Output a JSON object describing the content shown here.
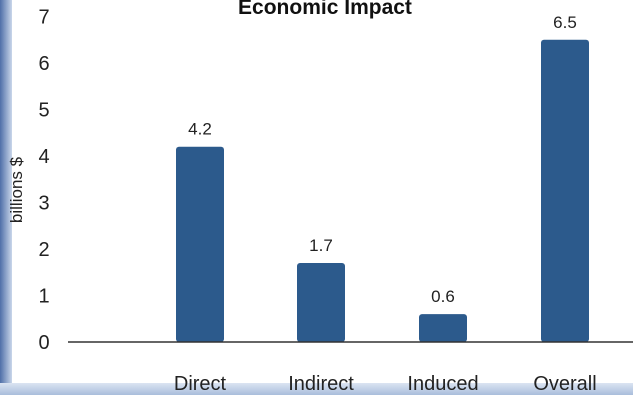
{
  "chart_data": {
    "type": "bar",
    "title": "Economic Impact",
    "xlabel": "",
    "ylabel": "billions $",
    "categories": [
      "Direct",
      "Indirect",
      "Induced",
      "Overall"
    ],
    "values": [
      4.2,
      1.7,
      0.6,
      6.5
    ],
    "value_labels": [
      "4.2",
      "1.7",
      "0.6",
      "6.5"
    ],
    "ylim": [
      0,
      7
    ],
    "yticks": [
      0,
      1,
      2,
      3,
      4,
      5,
      6,
      7
    ],
    "grid": false,
    "legend": "none",
    "colors": {
      "bar": "#2c5a8c",
      "axis": "#333333"
    }
  }
}
